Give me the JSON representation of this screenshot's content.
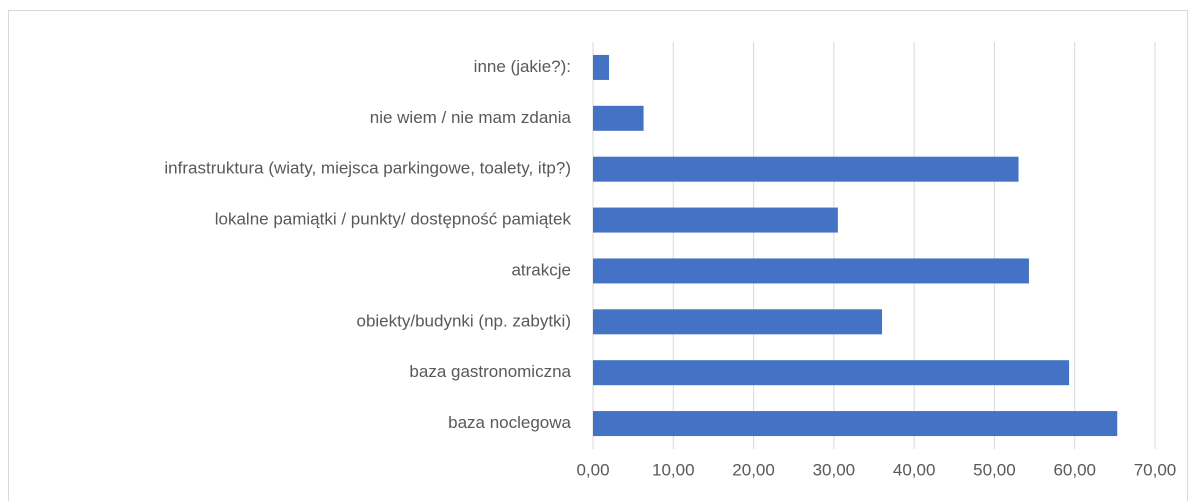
{
  "chart_data": {
    "type": "bar",
    "orientation": "horizontal",
    "categories": [
      "inne (jakie?):",
      "nie wiem / nie mam zdania",
      "infrastruktura (wiaty, miejsca parkingowe, toalety, itp?)",
      "lokalne pamiątki / punkty/ dostępność pamiątek",
      "atrakcje",
      "obiekty/budynki (np. zabytki)",
      "baza gastronomiczna",
      "baza noclegowa"
    ],
    "values": [
      2.0,
      6.3,
      53.0,
      30.5,
      54.3,
      36.0,
      59.3,
      65.3
    ],
    "color": "#4472c4",
    "xlim": [
      0,
      70
    ],
    "xticks": [
      {
        "value": 0,
        "label": "0,00"
      },
      {
        "value": 10,
        "label": "10,00"
      },
      {
        "value": 20,
        "label": "20,00"
      },
      {
        "value": 30,
        "label": "30,00"
      },
      {
        "value": 40,
        "label": "40,00"
      },
      {
        "value": 50,
        "label": "50,00"
      },
      {
        "value": 60,
        "label": "60,00"
      },
      {
        "value": 70,
        "label": "70,00"
      }
    ],
    "grid": true
  }
}
